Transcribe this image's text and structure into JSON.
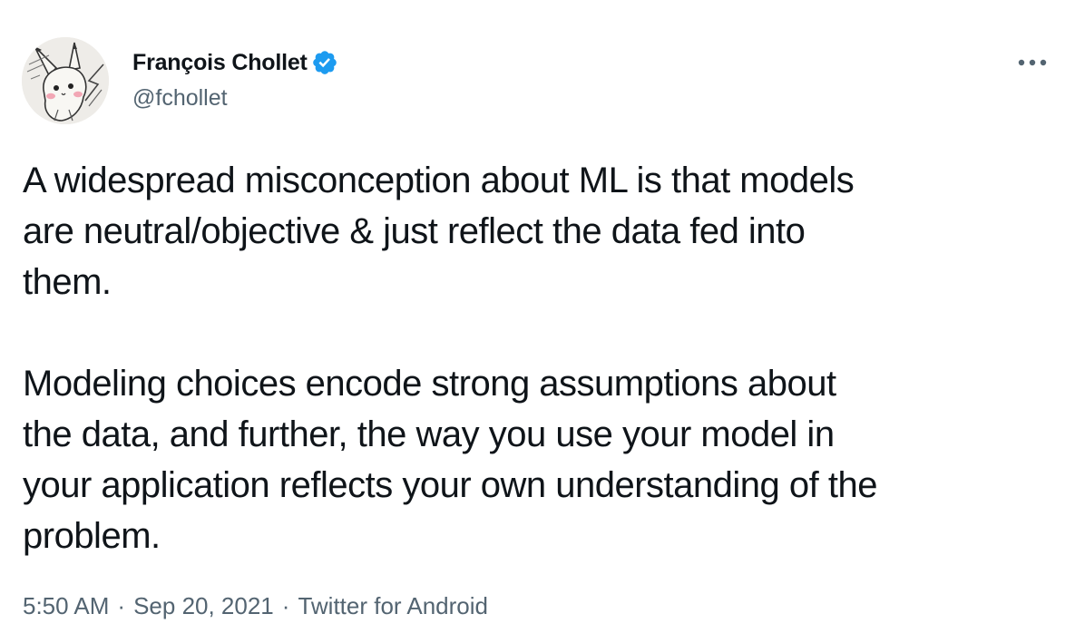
{
  "author": {
    "display_name": "François Chollet",
    "handle": "@fchollet",
    "verified": true,
    "verified_color": "#1d9bf0",
    "avatar_icon": "pikachu-sketch-avatar"
  },
  "menu": {
    "icon": "more-icon"
  },
  "tweet": {
    "paragraph_1": [
      "A widespread misconception about ML is that models",
      "are neutral/objective & just reflect the data fed into",
      "them."
    ],
    "paragraph_2": [
      "Modeling choices encode strong assumptions about",
      "the data, and further, the way you use your model in",
      "your application reflects your own understanding of the",
      "problem."
    ]
  },
  "meta": {
    "time": "5:50 AM",
    "separator": "·",
    "date": "Sep 20, 2021",
    "source": "Twitter for Android"
  },
  "colors": {
    "text_primary": "#0f1419",
    "text_secondary": "#536471",
    "background": "#ffffff"
  }
}
